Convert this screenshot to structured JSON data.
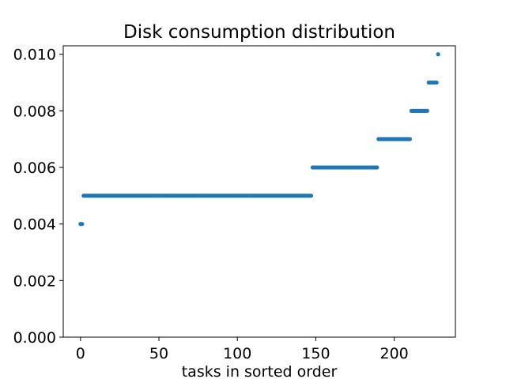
{
  "chart_data": {
    "type": "scatter",
    "title": "Disk consumption distribution",
    "xlabel": "tasks in sorted order",
    "ylabel": "",
    "xlim": [
      -11,
      239
    ],
    "ylim": [
      0.0,
      0.0103
    ],
    "xticks": [
      0,
      50,
      100,
      150,
      200
    ],
    "yticks": [
      0.0,
      0.002,
      0.004,
      0.006,
      0.008,
      0.01
    ],
    "xtick_labels": [
      "0",
      "50",
      "100",
      "150",
      "200"
    ],
    "ytick_labels": [
      "0.000",
      "0.002",
      "0.004",
      "0.006",
      "0.008",
      "0.010"
    ],
    "marker_color": "#1f77b4",
    "grid": false,
    "segments": [
      {
        "x_start": 0,
        "x_end": 1,
        "y": 0.004
      },
      {
        "x_start": 2,
        "x_end": 147,
        "y": 0.005
      },
      {
        "x_start": 148,
        "x_end": 189,
        "y": 0.006
      },
      {
        "x_start": 190,
        "x_end": 210,
        "y": 0.007
      },
      {
        "x_start": 211,
        "x_end": 221,
        "y": 0.008
      },
      {
        "x_start": 222,
        "x_end": 227,
        "y": 0.009
      },
      {
        "x_start": 228,
        "x_end": 228,
        "y": 0.01
      }
    ]
  }
}
